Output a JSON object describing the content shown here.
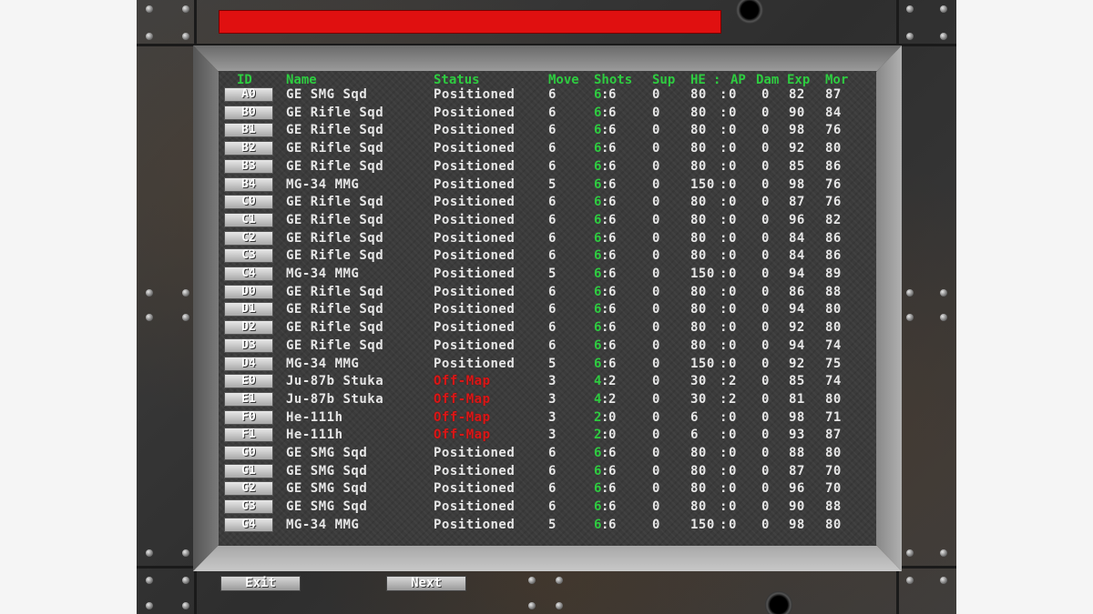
{
  "status_bar_color": "#e01010",
  "columns": [
    "ID",
    "Name",
    "Status",
    "Move",
    "Shots",
    "Sup",
    "HE",
    "AP",
    "Dam",
    "Exp",
    "Mor"
  ],
  "rows": [
    {
      "id": "A0",
      "name": "GE SMG Sqd",
      "status": "Positioned",
      "offmap": false,
      "move": "6",
      "shots_left": "6",
      "shots_total": "6",
      "sup": "0",
      "he": "80",
      "ap": "0",
      "dam": "0",
      "exp": "82",
      "mor": "87"
    },
    {
      "id": "B0",
      "name": "GE Rifle Sqd",
      "status": "Positioned",
      "offmap": false,
      "move": "6",
      "shots_left": "6",
      "shots_total": "6",
      "sup": "0",
      "he": "80",
      "ap": "0",
      "dam": "0",
      "exp": "90",
      "mor": "84"
    },
    {
      "id": "B1",
      "name": "GE Rifle Sqd",
      "status": "Positioned",
      "offmap": false,
      "move": "6",
      "shots_left": "6",
      "shots_total": "6",
      "sup": "0",
      "he": "80",
      "ap": "0",
      "dam": "0",
      "exp": "98",
      "mor": "76"
    },
    {
      "id": "B2",
      "name": "GE Rifle Sqd",
      "status": "Positioned",
      "offmap": false,
      "move": "6",
      "shots_left": "6",
      "shots_total": "6",
      "sup": "0",
      "he": "80",
      "ap": "0",
      "dam": "0",
      "exp": "92",
      "mor": "80"
    },
    {
      "id": "B3",
      "name": "GE Rifle Sqd",
      "status": "Positioned",
      "offmap": false,
      "move": "6",
      "shots_left": "6",
      "shots_total": "6",
      "sup": "0",
      "he": "80",
      "ap": "0",
      "dam": "0",
      "exp": "85",
      "mor": "86"
    },
    {
      "id": "B4",
      "name": "MG-34 MMG",
      "status": "Positioned",
      "offmap": false,
      "move": "5",
      "shots_left": "6",
      "shots_total": "6",
      "sup": "0",
      "he": "150",
      "ap": "0",
      "dam": "0",
      "exp": "98",
      "mor": "76"
    },
    {
      "id": "C0",
      "name": "GE Rifle Sqd",
      "status": "Positioned",
      "offmap": false,
      "move": "6",
      "shots_left": "6",
      "shots_total": "6",
      "sup": "0",
      "he": "80",
      "ap": "0",
      "dam": "0",
      "exp": "87",
      "mor": "76"
    },
    {
      "id": "C1",
      "name": "GE Rifle Sqd",
      "status": "Positioned",
      "offmap": false,
      "move": "6",
      "shots_left": "6",
      "shots_total": "6",
      "sup": "0",
      "he": "80",
      "ap": "0",
      "dam": "0",
      "exp": "96",
      "mor": "82"
    },
    {
      "id": "C2",
      "name": "GE Rifle Sqd",
      "status": "Positioned",
      "offmap": false,
      "move": "6",
      "shots_left": "6",
      "shots_total": "6",
      "sup": "0",
      "he": "80",
      "ap": "0",
      "dam": "0",
      "exp": "84",
      "mor": "86"
    },
    {
      "id": "C3",
      "name": "GE Rifle Sqd",
      "status": "Positioned",
      "offmap": false,
      "move": "6",
      "shots_left": "6",
      "shots_total": "6",
      "sup": "0",
      "he": "80",
      "ap": "0",
      "dam": "0",
      "exp": "84",
      "mor": "86"
    },
    {
      "id": "C4",
      "name": "MG-34 MMG",
      "status": "Positioned",
      "offmap": false,
      "move": "5",
      "shots_left": "6",
      "shots_total": "6",
      "sup": "0",
      "he": "150",
      "ap": "0",
      "dam": "0",
      "exp": "94",
      "mor": "89"
    },
    {
      "id": "D0",
      "name": "GE Rifle Sqd",
      "status": "Positioned",
      "offmap": false,
      "move": "6",
      "shots_left": "6",
      "shots_total": "6",
      "sup": "0",
      "he": "80",
      "ap": "0",
      "dam": "0",
      "exp": "86",
      "mor": "88"
    },
    {
      "id": "D1",
      "name": "GE Rifle Sqd",
      "status": "Positioned",
      "offmap": false,
      "move": "6",
      "shots_left": "6",
      "shots_total": "6",
      "sup": "0",
      "he": "80",
      "ap": "0",
      "dam": "0",
      "exp": "94",
      "mor": "80"
    },
    {
      "id": "D2",
      "name": "GE Rifle Sqd",
      "status": "Positioned",
      "offmap": false,
      "move": "6",
      "shots_left": "6",
      "shots_total": "6",
      "sup": "0",
      "he": "80",
      "ap": "0",
      "dam": "0",
      "exp": "92",
      "mor": "80"
    },
    {
      "id": "D3",
      "name": "GE Rifle Sqd",
      "status": "Positioned",
      "offmap": false,
      "move": "6",
      "shots_left": "6",
      "shots_total": "6",
      "sup": "0",
      "he": "80",
      "ap": "0",
      "dam": "0",
      "exp": "94",
      "mor": "74"
    },
    {
      "id": "D4",
      "name": "MG-34 MMG",
      "status": "Positioned",
      "offmap": false,
      "move": "5",
      "shots_left": "6",
      "shots_total": "6",
      "sup": "0",
      "he": "150",
      "ap": "0",
      "dam": "0",
      "exp": "92",
      "mor": "75"
    },
    {
      "id": "E0",
      "name": "Ju-87b Stuka",
      "status": "Off-Map",
      "offmap": true,
      "move": "3",
      "shots_left": "4",
      "shots_total": "2",
      "sup": "0",
      "he": "30",
      "ap": "2",
      "dam": "0",
      "exp": "85",
      "mor": "74"
    },
    {
      "id": "E1",
      "name": "Ju-87b Stuka",
      "status": "Off-Map",
      "offmap": true,
      "move": "3",
      "shots_left": "4",
      "shots_total": "2",
      "sup": "0",
      "he": "30",
      "ap": "2",
      "dam": "0",
      "exp": "81",
      "mor": "80"
    },
    {
      "id": "F0",
      "name": "He-111h",
      "status": "Off-Map",
      "offmap": true,
      "move": "3",
      "shots_left": "2",
      "shots_total": "0",
      "sup": "0",
      "he": "6",
      "ap": "0",
      "dam": "0",
      "exp": "98",
      "mor": "71"
    },
    {
      "id": "F1",
      "name": "He-111h",
      "status": "Off-Map",
      "offmap": true,
      "move": "3",
      "shots_left": "2",
      "shots_total": "0",
      "sup": "0",
      "he": "6",
      "ap": "0",
      "dam": "0",
      "exp": "93",
      "mor": "87"
    },
    {
      "id": "G0",
      "name": "GE SMG Sqd",
      "status": "Positioned",
      "offmap": false,
      "move": "6",
      "shots_left": "6",
      "shots_total": "6",
      "sup": "0",
      "he": "80",
      "ap": "0",
      "dam": "0",
      "exp": "88",
      "mor": "80"
    },
    {
      "id": "G1",
      "name": "GE SMG Sqd",
      "status": "Positioned",
      "offmap": false,
      "move": "6",
      "shots_left": "6",
      "shots_total": "6",
      "sup": "0",
      "he": "80",
      "ap": "0",
      "dam": "0",
      "exp": "87",
      "mor": "70"
    },
    {
      "id": "G2",
      "name": "GE SMG Sqd",
      "status": "Positioned",
      "offmap": false,
      "move": "6",
      "shots_left": "6",
      "shots_total": "6",
      "sup": "0",
      "he": "80",
      "ap": "0",
      "dam": "0",
      "exp": "96",
      "mor": "70"
    },
    {
      "id": "G3",
      "name": "GE SMG Sqd",
      "status": "Positioned",
      "offmap": false,
      "move": "6",
      "shots_left": "6",
      "shots_total": "6",
      "sup": "0",
      "he": "80",
      "ap": "0",
      "dam": "0",
      "exp": "90",
      "mor": "88"
    },
    {
      "id": "G4",
      "name": "MG-34 MMG",
      "status": "Positioned",
      "offmap": false,
      "move": "5",
      "shots_left": "6",
      "shots_total": "6",
      "sup": "0",
      "he": "150",
      "ap": "0",
      "dam": "0",
      "exp": "98",
      "mor": "80"
    }
  ],
  "buttons": {
    "exit": "Exit",
    "next": "Next"
  }
}
